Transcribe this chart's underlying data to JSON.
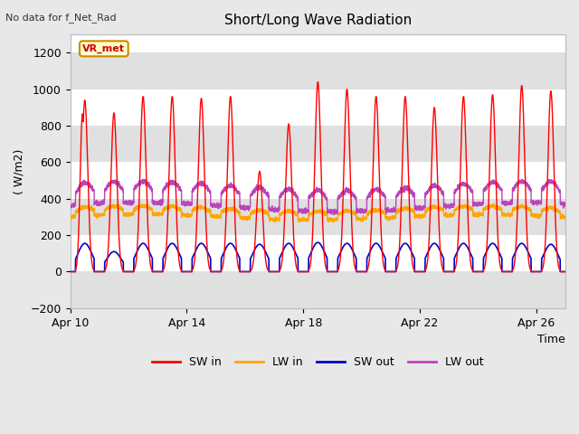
{
  "title": "Short/Long Wave Radiation",
  "xlabel": "Time",
  "ylabel": "( W/m2)",
  "ylim": [
    -200,
    1300
  ],
  "yticks": [
    -200,
    0,
    200,
    400,
    600,
    800,
    1000,
    1200
  ],
  "top_left_text": "No data for f_Net_Rad",
  "station_label": "VR_met",
  "legend": [
    {
      "label": "SW in",
      "color": "#ff0000"
    },
    {
      "label": "LW in",
      "color": "#ffa500"
    },
    {
      "label": "SW out",
      "color": "#0000cc"
    },
    {
      "label": "LW out",
      "color": "#bb44bb"
    }
  ],
  "x_tick_labels": [
    "Apr 10",
    "Apr 14",
    "Apr 18",
    "Apr 22",
    "Apr 26"
  ],
  "x_tick_positions": [
    0,
    4,
    8,
    12,
    16
  ],
  "fig_bg_color": "#e8e8e8",
  "plot_bg_color": "#ffffff",
  "band_color": "#e0e0e0",
  "n_days": 17,
  "sw_peaks": [
    940,
    870,
    960,
    960,
    950,
    960,
    550,
    810,
    1040,
    1000,
    960,
    960,
    900,
    960,
    970,
    1020,
    990
  ],
  "sw_out_peaks": [
    155,
    110,
    155,
    155,
    155,
    155,
    150,
    155,
    160,
    155,
    155,
    155,
    155,
    155,
    155,
    155,
    150
  ],
  "lw_in_base": 290,
  "lw_out_base": 340
}
